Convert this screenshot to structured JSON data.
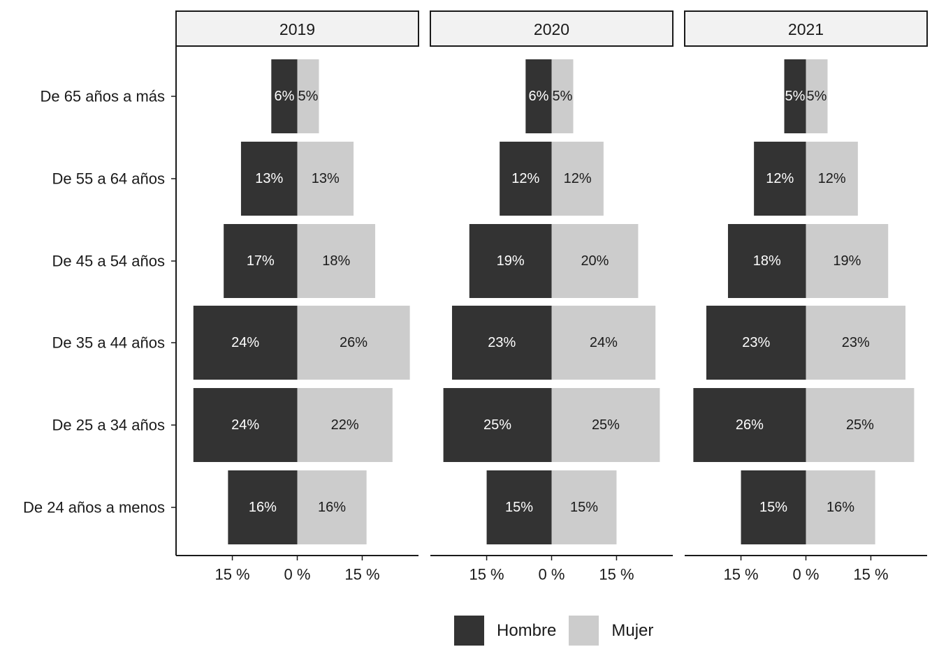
{
  "chart_data": {
    "type": "bar",
    "orientation": "horizontal",
    "variant": "population-pyramid",
    "panels": [
      "2019",
      "2020",
      "2021"
    ],
    "categories": [
      "De 65 años a más",
      "De 55 a 64 años",
      "De 45 a 54 años",
      "De 35 a 44 años",
      "De 25 a 34 años",
      "De 24 años a menos"
    ],
    "series": [
      {
        "name": "Hombre",
        "color": "#333333",
        "label_color": "#ffffff",
        "values": {
          "2019": [
            6,
            13,
            17,
            24,
            24,
            16
          ],
          "2020": [
            6,
            12,
            19,
            23,
            25,
            15
          ],
          "2021": [
            5,
            12,
            18,
            23,
            26,
            15
          ]
        }
      },
      {
        "name": "Mujer",
        "color": "#cccccc",
        "label_color": "#1a1a1a",
        "values": {
          "2019": [
            5,
            13,
            18,
            26,
            22,
            16
          ],
          "2020": [
            5,
            12,
            20,
            24,
            25,
            15
          ],
          "2021": [
            5,
            12,
            19,
            23,
            25,
            16
          ]
        }
      }
    ],
    "x_ticks": [
      {
        "value": -15,
        "label": "15 %"
      },
      {
        "value": 0,
        "label": "0 %"
      },
      {
        "value": 15,
        "label": "15 %"
      }
    ],
    "data_label_suffix": "%",
    "xlim": [
      -28,
      28
    ],
    "legend_position": "bottom",
    "grid": false,
    "strip_fill": "#f2f2f2"
  }
}
